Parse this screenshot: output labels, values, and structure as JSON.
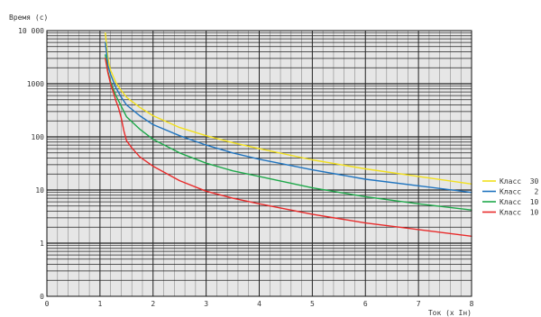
{
  "chart_data": {
    "type": "line",
    "ylabel": "Время (с)",
    "xlabel": "Ток (х Iн)",
    "xlim": [
      0,
      8
    ],
    "ylim": [
      0.1,
      10000
    ],
    "yscale": "log",
    "grid": true,
    "legend_position": "right",
    "x_ticks": [
      {
        "v": 0,
        "label": "0"
      },
      {
        "v": 1,
        "label": "1"
      },
      {
        "v": 2,
        "label": "2"
      },
      {
        "v": 3,
        "label": "3"
      },
      {
        "v": 4,
        "label": "4"
      },
      {
        "v": 5,
        "label": "5"
      },
      {
        "v": 6,
        "label": "6"
      },
      {
        "v": 7,
        "label": "7"
      },
      {
        "v": 8,
        "label": "8"
      }
    ],
    "y_ticks": [
      {
        "v": 0.1,
        "label": "0"
      },
      {
        "v": 1,
        "label": "1"
      },
      {
        "v": 10,
        "label": "10"
      },
      {
        "v": 100,
        "label": "100"
      },
      {
        "v": 1000,
        "label": "1000"
      },
      {
        "v": 10000,
        "label": "10 000"
      }
    ],
    "series": [
      {
        "name": "Класс  30",
        "color": "#f2e01c",
        "x": [
          1.1,
          1.15,
          1.2,
          1.3,
          1.4,
          1.5,
          1.75,
          2,
          2.5,
          3,
          3.5,
          4,
          5,
          6,
          7,
          8
        ],
        "y": [
          9000,
          3000,
          1800,
          1050,
          750,
          560,
          360,
          250,
          150,
          105,
          78,
          60,
          37,
          25,
          18,
          13
        ]
      },
      {
        "name": "Класс   2",
        "color": "#1f74bf",
        "x": [
          1.1,
          1.15,
          1.2,
          1.3,
          1.4,
          1.5,
          1.75,
          2,
          2.5,
          3,
          3.5,
          4,
          5,
          6,
          7,
          8
        ],
        "y": [
          6000,
          2200,
          1500,
          850,
          560,
          400,
          250,
          170,
          105,
          70,
          50,
          38,
          24,
          16,
          12,
          9
        ]
      },
      {
        "name": "Класс  10",
        "color": "#1ea84a",
        "x": [
          1.1,
          1.15,
          1.2,
          1.3,
          1.4,
          1.5,
          1.75,
          2,
          2.5,
          3,
          3.5,
          4,
          5,
          6,
          7,
          8
        ],
        "y": [
          3500,
          1700,
          1100,
          600,
          380,
          240,
          140,
          90,
          50,
          32,
          23,
          18,
          11,
          7.5,
          5.5,
          4.2
        ]
      },
      {
        "name": "Класс  10",
        "color": "#e82a2a",
        "x": [
          1.1,
          1.15,
          1.2,
          1.25,
          1.3,
          1.35,
          1.4,
          1.45,
          1.5,
          1.6,
          1.75,
          2,
          2.5,
          3,
          3.5,
          4,
          5,
          6,
          7,
          8
        ],
        "y": [
          3000,
          1600,
          1000,
          700,
          480,
          350,
          230,
          130,
          85,
          62,
          42,
          28,
          15,
          9.5,
          7,
          5.5,
          3.5,
          2.4,
          1.8,
          1.35
        ]
      }
    ]
  }
}
